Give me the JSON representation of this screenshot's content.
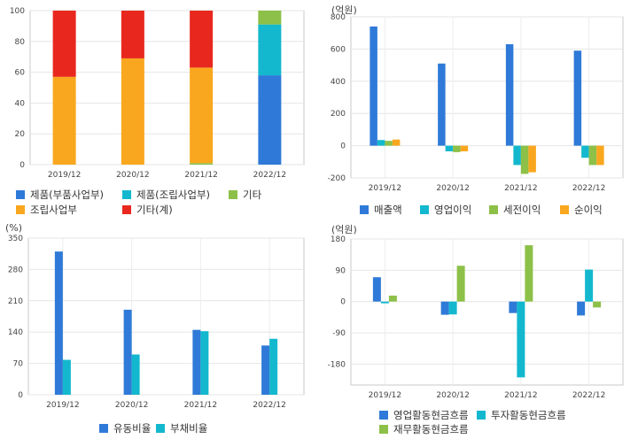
{
  "colors": {
    "blue": "#2f7ad8",
    "cyan": "#13b8ce",
    "green": "#8dc048",
    "orange": "#f9a71f",
    "red": "#e8281e"
  },
  "chart_data": [
    {
      "type": "bar",
      "stacked": true,
      "unit": "",
      "categories": [
        "2019/12",
        "2020/12",
        "2021/12",
        "2022/12"
      ],
      "ylim": [
        0,
        100
      ],
      "yticks": [
        0,
        20,
        40,
        60,
        80,
        100
      ],
      "grid": true,
      "legend_position": "bottom",
      "series": [
        {
          "name": "제품(부품사업부)",
          "color": "blue",
          "values": [
            0,
            0,
            0,
            58
          ]
        },
        {
          "name": "제품(조립사업부)",
          "color": "cyan",
          "values": [
            0,
            0,
            0,
            33
          ]
        },
        {
          "name": "기타",
          "color": "green",
          "values": [
            0,
            0,
            1,
            9
          ]
        },
        {
          "name": "조립사업부",
          "color": "orange",
          "values": [
            57,
            69,
            62,
            0
          ]
        },
        {
          "name": "기타(계)",
          "color": "red",
          "values": [
            43,
            31,
            37,
            0
          ]
        }
      ]
    },
    {
      "type": "bar",
      "unit": "(억원)",
      "categories": [
        "2019/12",
        "2020/12",
        "2021/12",
        "2022/12"
      ],
      "ylim": [
        -200,
        800
      ],
      "yticks": [
        -200,
        0,
        200,
        400,
        600,
        800
      ],
      "grid": true,
      "legend_position": "bottom",
      "series": [
        {
          "name": "매출액",
          "color": "blue",
          "values": [
            740,
            510,
            630,
            590
          ]
        },
        {
          "name": "영업이익",
          "color": "cyan",
          "values": [
            35,
            -35,
            -120,
            -75
          ]
        },
        {
          "name": "세전이익",
          "color": "green",
          "values": [
            30,
            -40,
            -175,
            -120
          ]
        },
        {
          "name": "순이익",
          "color": "orange",
          "values": [
            38,
            -35,
            -165,
            -120
          ]
        }
      ]
    },
    {
      "type": "bar",
      "unit": "(%)",
      "categories": [
        "2019/12",
        "2020/12",
        "2021/12",
        "2022/12"
      ],
      "ylim": [
        0,
        350
      ],
      "yticks": [
        0,
        70,
        140,
        210,
        280,
        350
      ],
      "grid": true,
      "legend_position": "bottom",
      "series": [
        {
          "name": "유동비율",
          "color": "blue",
          "values": [
            320,
            190,
            145,
            110
          ]
        },
        {
          "name": "부채비율",
          "color": "cyan",
          "values": [
            78,
            90,
            142,
            125
          ]
        }
      ]
    },
    {
      "type": "bar",
      "unit": "(억원)",
      "categories": [
        "2019/12",
        "2020/12",
        "2021/12",
        "2022/12"
      ],
      "ylim": [
        -240,
        180
      ],
      "yticks": [
        -180,
        -90,
        0,
        90,
        180
      ],
      "grid": true,
      "legend_position": "bottom",
      "series": [
        {
          "name": "영업활동현금흐름",
          "color": "blue",
          "values": [
            70,
            -38,
            -33,
            -40
          ]
        },
        {
          "name": "투자활동현금흐름",
          "color": "cyan",
          "values": [
            -5,
            -37,
            -218,
            92
          ]
        },
        {
          "name": "재무활동현금흐름",
          "color": "green",
          "values": [
            17,
            103,
            162,
            -17
          ]
        }
      ]
    }
  ]
}
